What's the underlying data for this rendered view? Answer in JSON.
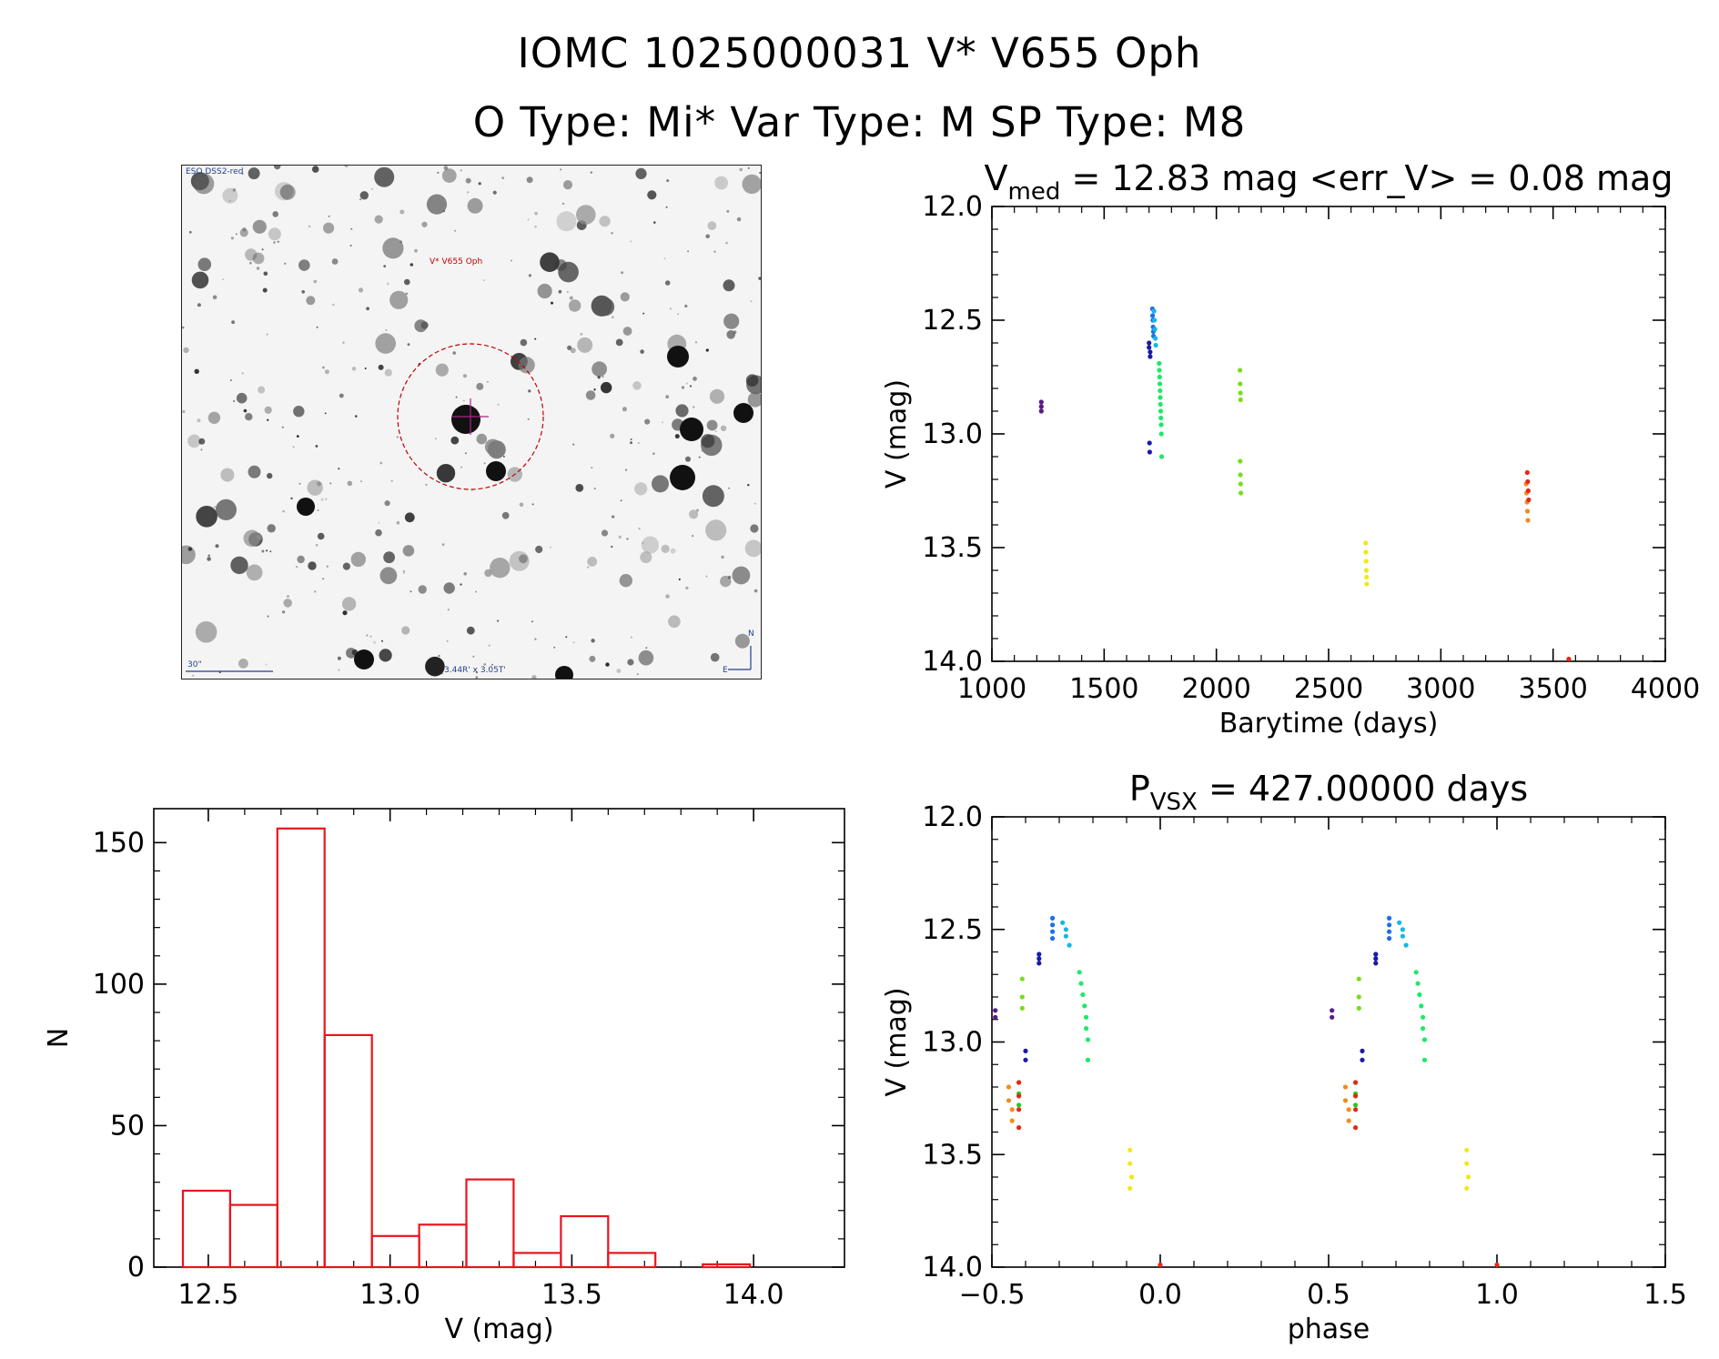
{
  "header": {
    "title_line1": "IOMC 1025000031   V* V655 Oph",
    "title_line2": "O Type: Mi*  Var Type: M  SP Type: M8"
  },
  "image_panel": {
    "survey_label": "ESO DSS2-red",
    "target_label": "V* V655 Oph",
    "scale_label": "30\"",
    "size_label": "3.44R' x 3.05T'",
    "north_label": "N",
    "east_label": "E"
  },
  "chart_data": [
    {
      "id": "lightcurve",
      "type": "scatter",
      "title_main": "V",
      "title_sub": "med",
      "title_rest": " = 12.83 mag <err_V> = 0.08 mag",
      "xlabel": "Barytime (days)",
      "ylabel": "V (mag)",
      "xlim": [
        1000,
        4000
      ],
      "ylim": [
        14.0,
        12.0
      ],
      "xticks": [
        "1000",
        "1500",
        "2000",
        "2500",
        "3000",
        "3500",
        "4000"
      ],
      "yticks": [
        "12.0",
        "12.5",
        "13.0",
        "13.5",
        "14.0"
      ],
      "series": [
        {
          "name": "g1",
          "color": "#5a1a8c",
          "x": [
            1220,
            1220,
            1220
          ],
          "y": [
            12.86,
            12.88,
            12.9
          ]
        },
        {
          "name": "g2",
          "color": "#1a1aa8",
          "x": [
            1700,
            1700,
            1705,
            1705,
            1702,
            1703
          ],
          "y": [
            12.6,
            12.62,
            12.64,
            12.66,
            13.04,
            13.08
          ]
        },
        {
          "name": "g3",
          "color": "#1e6ee8",
          "x": [
            1715,
            1716,
            1717,
            1718,
            1719,
            1720
          ],
          "y": [
            12.45,
            12.48,
            12.5,
            12.53,
            12.55,
            12.57
          ]
        },
        {
          "name": "g4",
          "color": "#12b8e6",
          "x": [
            1722,
            1724,
            1726,
            1728,
            1730
          ],
          "y": [
            12.46,
            12.5,
            12.54,
            12.58,
            12.61
          ]
        },
        {
          "name": "g5",
          "color": "#1ee86a",
          "x": [
            1745,
            1746,
            1747,
            1748,
            1749,
            1750,
            1751,
            1752,
            1753,
            1754,
            1755,
            1756
          ],
          "y": [
            12.69,
            12.72,
            12.75,
            12.78,
            12.81,
            12.84,
            12.87,
            12.9,
            12.93,
            12.96,
            13.0,
            13.1
          ]
        },
        {
          "name": "g6",
          "color": "#7adc1e",
          "x": [
            2105,
            2106,
            2107,
            2108,
            2106,
            2107,
            2108,
            2109
          ],
          "y": [
            12.72,
            12.78,
            12.82,
            12.85,
            13.12,
            13.18,
            13.22,
            13.26
          ]
        },
        {
          "name": "g7",
          "color": "#f0e81e",
          "x": [
            2665,
            2666,
            2667,
            2668,
            2669,
            2670
          ],
          "y": [
            13.48,
            13.52,
            13.56,
            13.6,
            13.63,
            13.66
          ]
        },
        {
          "name": "g8",
          "color": "#f08c1e",
          "x": [
            3380,
            3382,
            3384,
            3386,
            3388
          ],
          "y": [
            13.22,
            13.26,
            13.3,
            13.34,
            13.38
          ]
        },
        {
          "name": "g9",
          "color": "#e62814",
          "x": [
            3385,
            3387,
            3389,
            3391,
            3570
          ],
          "y": [
            13.17,
            13.21,
            13.25,
            13.29,
            13.99
          ]
        }
      ]
    },
    {
      "id": "histogram",
      "type": "bar",
      "xlabel": "V (mag)",
      "ylabel": "N",
      "xlim": [
        12.35,
        14.25
      ],
      "ylim": [
        0,
        162
      ],
      "xticks": [
        "12.5",
        "13.0",
        "13.5",
        "14.0"
      ],
      "yticks": [
        "0",
        "50",
        "100",
        "150"
      ],
      "bin_width": 0.13,
      "bin_starts": [
        12.43,
        12.56,
        12.69,
        12.82,
        12.95,
        13.08,
        13.21,
        13.34,
        13.47,
        13.6,
        13.73,
        13.86
      ],
      "values": [
        27,
        22,
        155,
        82,
        11,
        15,
        31,
        5,
        18,
        5,
        0,
        1
      ],
      "color": "#e8141e"
    },
    {
      "id": "phased",
      "type": "scatter",
      "title_main": "P",
      "title_sub": "VSX",
      "title_rest": " = 427.00000 days",
      "xlabel": "phase",
      "ylabel": "V (mag)",
      "xlim": [
        -0.5,
        1.5
      ],
      "ylim": [
        14.0,
        12.0
      ],
      "xticks": [
        "−0.5",
        "0.0",
        "0.5",
        "1.0",
        "1.5"
      ],
      "yticks": [
        "12.0",
        "12.5",
        "13.0",
        "13.5",
        "14.0"
      ],
      "series": [
        {
          "name": "p1",
          "color": "#5a1a8c",
          "x": [
            -0.49,
            -0.49,
            0.51,
            0.51
          ],
          "y": [
            12.86,
            12.89,
            12.86,
            12.89
          ]
        },
        {
          "name": "p2",
          "color": "#1a1aa8",
          "x": [
            -0.36,
            -0.36,
            -0.36,
            -0.4,
            -0.4,
            0.64,
            0.64,
            0.64,
            0.6,
            0.6
          ],
          "y": [
            12.61,
            12.63,
            12.65,
            13.04,
            13.08,
            12.61,
            12.63,
            12.65,
            13.04,
            13.08
          ]
        },
        {
          "name": "p3",
          "color": "#1e6ee8",
          "x": [
            -0.32,
            -0.32,
            -0.32,
            -0.32,
            0.68,
            0.68,
            0.68,
            0.68
          ],
          "y": [
            12.45,
            12.48,
            12.51,
            12.54,
            12.45,
            12.48,
            12.51,
            12.54
          ]
        },
        {
          "name": "p4",
          "color": "#12b8e6",
          "x": [
            -0.29,
            -0.28,
            -0.28,
            -0.27,
            0.71,
            0.72,
            0.72,
            0.73
          ],
          "y": [
            12.47,
            12.5,
            12.53,
            12.57,
            12.47,
            12.5,
            12.53,
            12.57
          ]
        },
        {
          "name": "p5",
          "color": "#1ee86a",
          "x": [
            -0.24,
            -0.235,
            -0.23,
            -0.225,
            -0.22,
            -0.22,
            -0.215,
            -0.215,
            0.76,
            0.765,
            0.77,
            0.775,
            0.78,
            0.78,
            0.785,
            0.785
          ],
          "y": [
            12.69,
            12.74,
            12.79,
            12.84,
            12.89,
            12.94,
            12.99,
            13.08,
            12.69,
            12.74,
            12.79,
            12.84,
            12.89,
            12.94,
            12.99,
            13.08
          ]
        },
        {
          "name": "p6",
          "color": "#7adc1e",
          "x": [
            -0.41,
            -0.41,
            -0.41,
            0.59,
            0.59,
            0.59
          ],
          "y": [
            12.72,
            12.8,
            12.85,
            12.72,
            12.8,
            12.85
          ]
        },
        {
          "name": "p7",
          "color": "#2ac820",
          "x": [
            -0.42,
            -0.42,
            -0.42,
            0.58,
            0.58,
            0.58
          ],
          "y": [
            13.18,
            13.23,
            13.28,
            13.18,
            13.23,
            13.28
          ]
        },
        {
          "name": "p8",
          "color": "#f0e81e",
          "x": [
            -0.09,
            -0.09,
            -0.085,
            -0.09,
            0.91,
            0.91,
            0.915,
            0.91
          ],
          "y": [
            13.48,
            13.54,
            13.6,
            13.65,
            13.48,
            13.54,
            13.6,
            13.65
          ]
        },
        {
          "name": "p9",
          "color": "#f08c1e",
          "x": [
            -0.45,
            -0.45,
            -0.44,
            -0.44,
            0.55,
            0.55,
            0.56,
            0.56
          ],
          "y": [
            13.2,
            13.26,
            13.3,
            13.35,
            13.2,
            13.26,
            13.3,
            13.35
          ]
        },
        {
          "name": "p10",
          "color": "#e62814",
          "x": [
            -0.42,
            -0.42,
            -0.42,
            -0.42,
            0.0,
            0.58,
            0.58,
            0.58,
            0.58,
            1.0
          ],
          "y": [
            13.18,
            13.24,
            13.3,
            13.38,
            13.99,
            13.18,
            13.24,
            13.3,
            13.38,
            13.99
          ]
        }
      ]
    }
  ]
}
